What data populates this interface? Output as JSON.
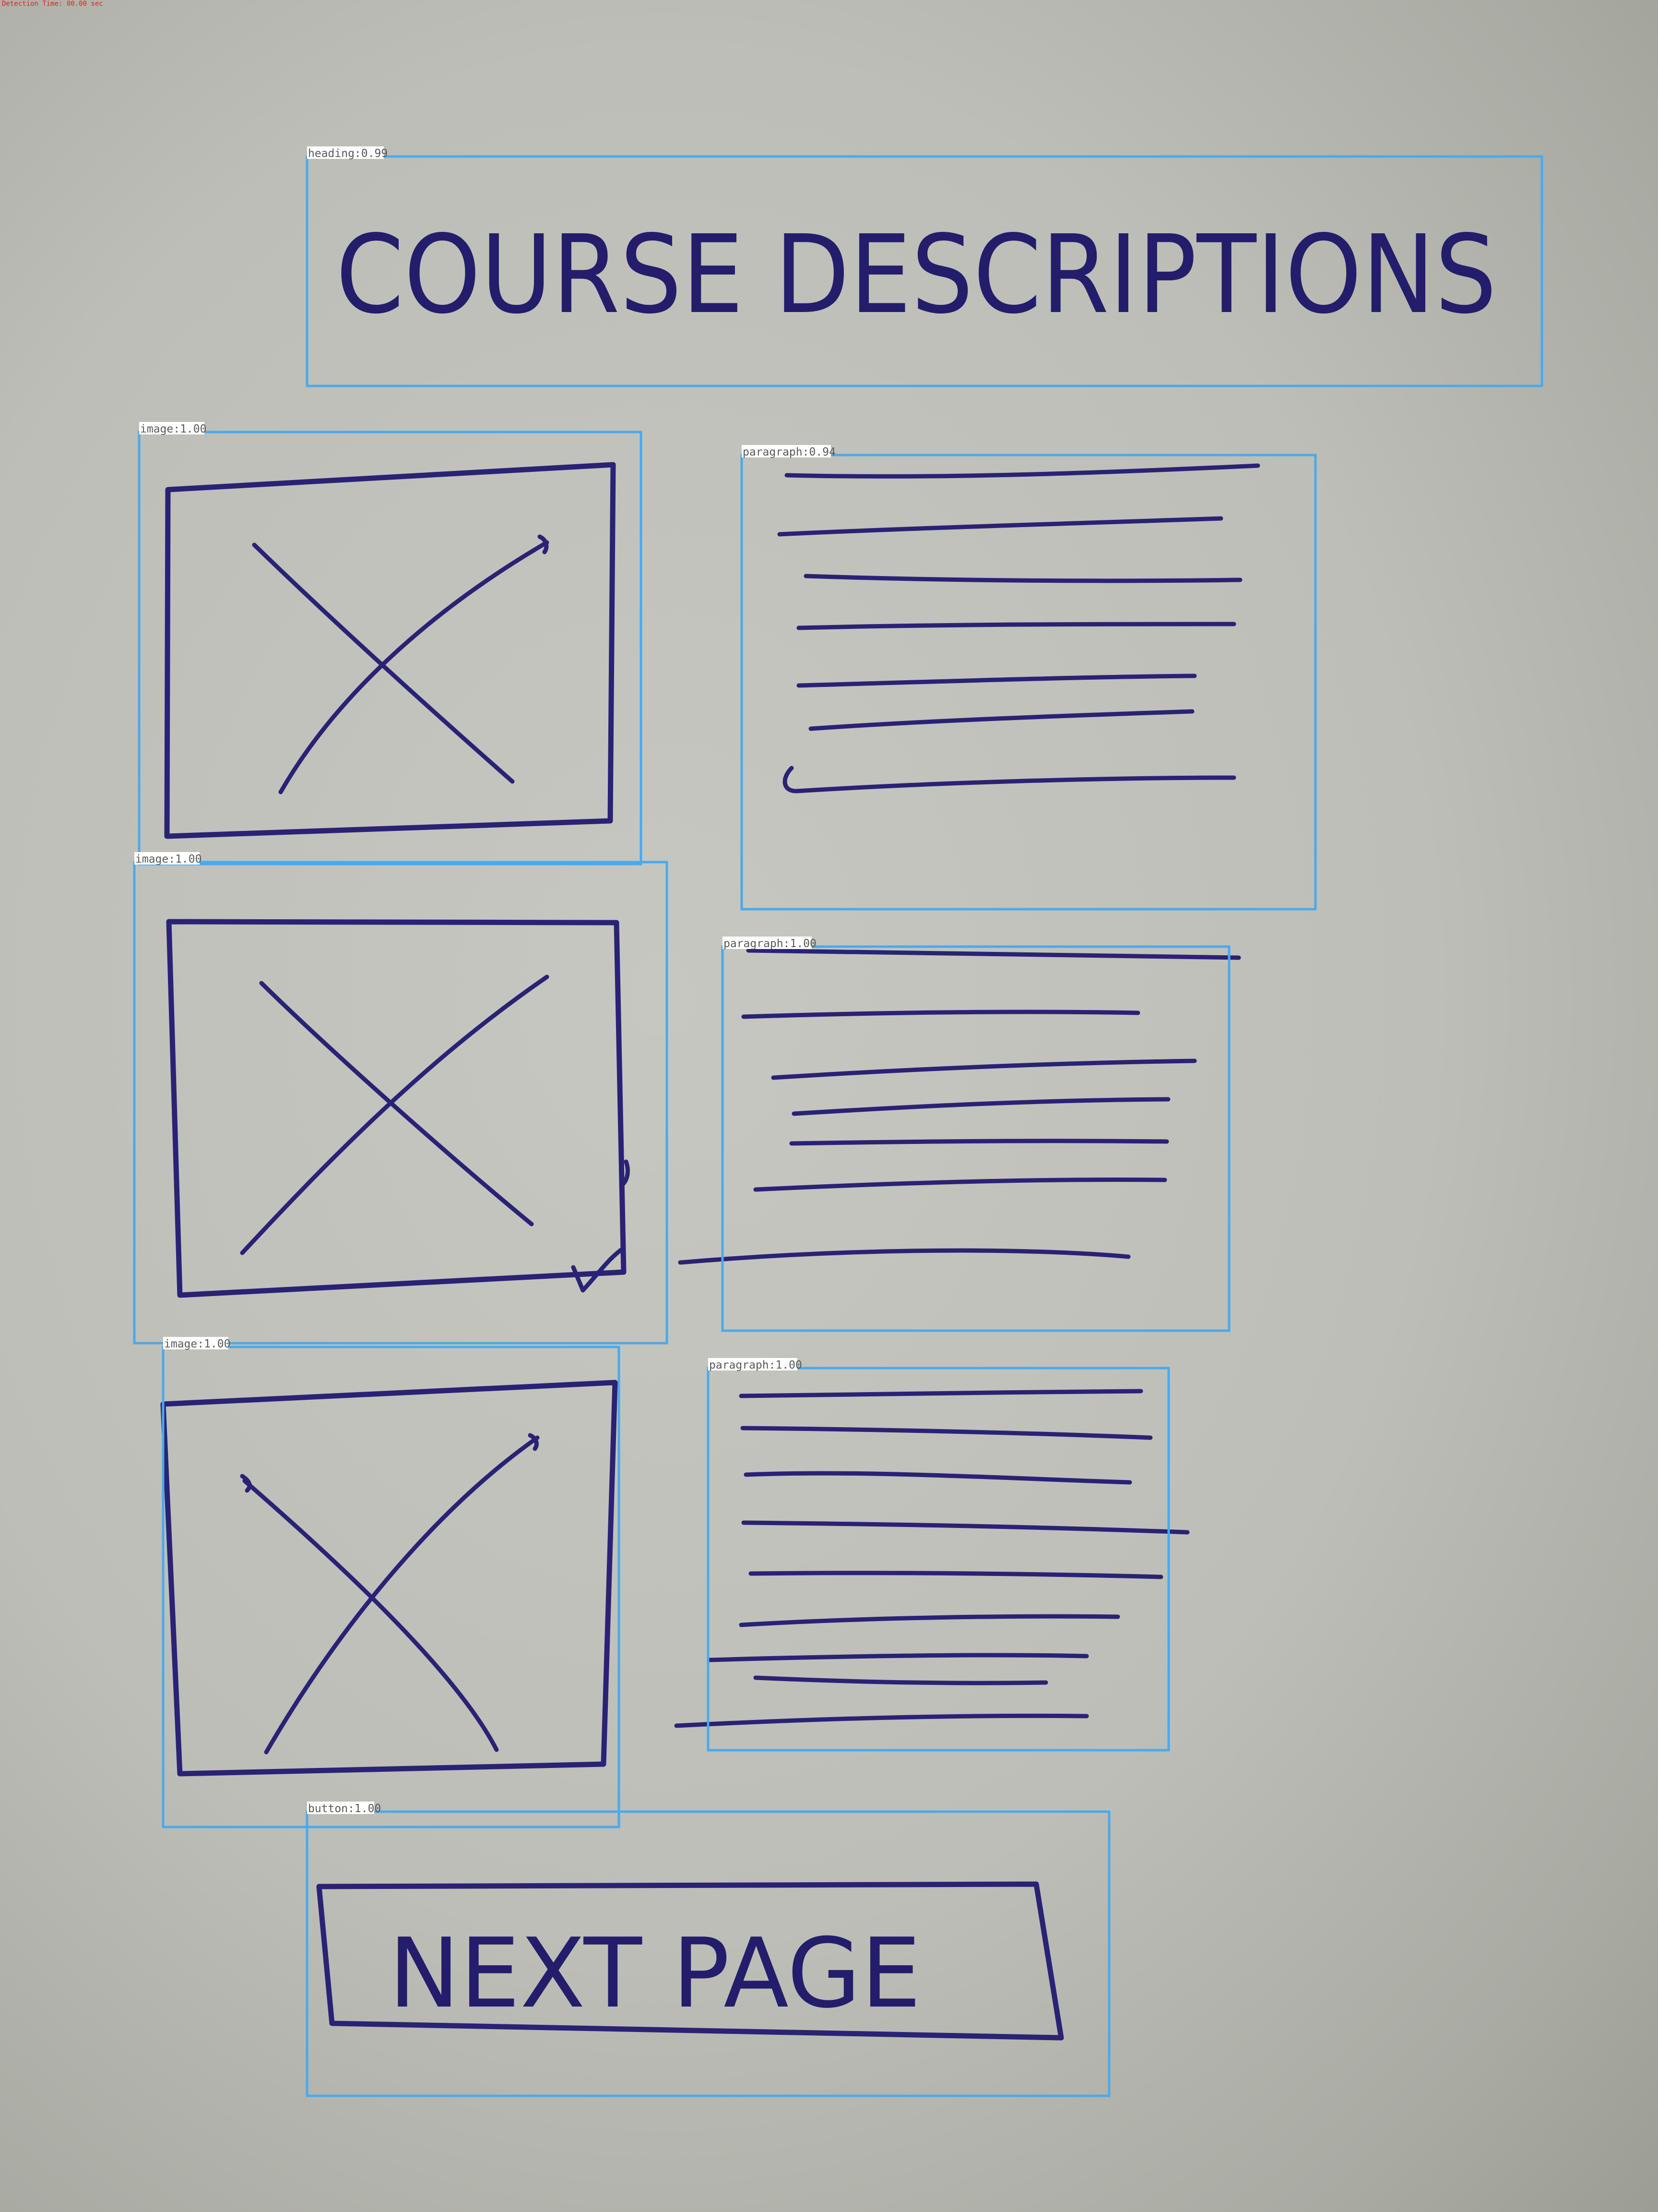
{
  "corner_tag": "Detection Time: 00.00 sec",
  "sketch": {
    "heading_text": "COURSE DESCRIPTIONS",
    "button_text": "NEXT PAGE"
  },
  "detections": [
    {
      "label": "heading",
      "score": "0.99",
      "text": "heading:0.99"
    },
    {
      "label": "image",
      "score": "1.00",
      "text": "image:1.00"
    },
    {
      "label": "paragraph",
      "score": "0.94",
      "text": "paragraph:0.94"
    },
    {
      "label": "image",
      "score": "1.00",
      "text": "image:1.00"
    },
    {
      "label": "paragraph",
      "score": "1.00",
      "text": "paragraph:1.00"
    },
    {
      "label": "image",
      "score": "1.00",
      "text": "image:1.00"
    },
    {
      "label": "paragraph",
      "score": "1.00",
      "text": "paragraph:1.00"
    },
    {
      "label": "button",
      "score": "1.00",
      "text": "button:1.00"
    }
  ],
  "colors": {
    "ink": "#2a2275",
    "detection_box": "#4aa9ec",
    "paper": "#c6c7c1",
    "corner_tag": "#d62424"
  }
}
